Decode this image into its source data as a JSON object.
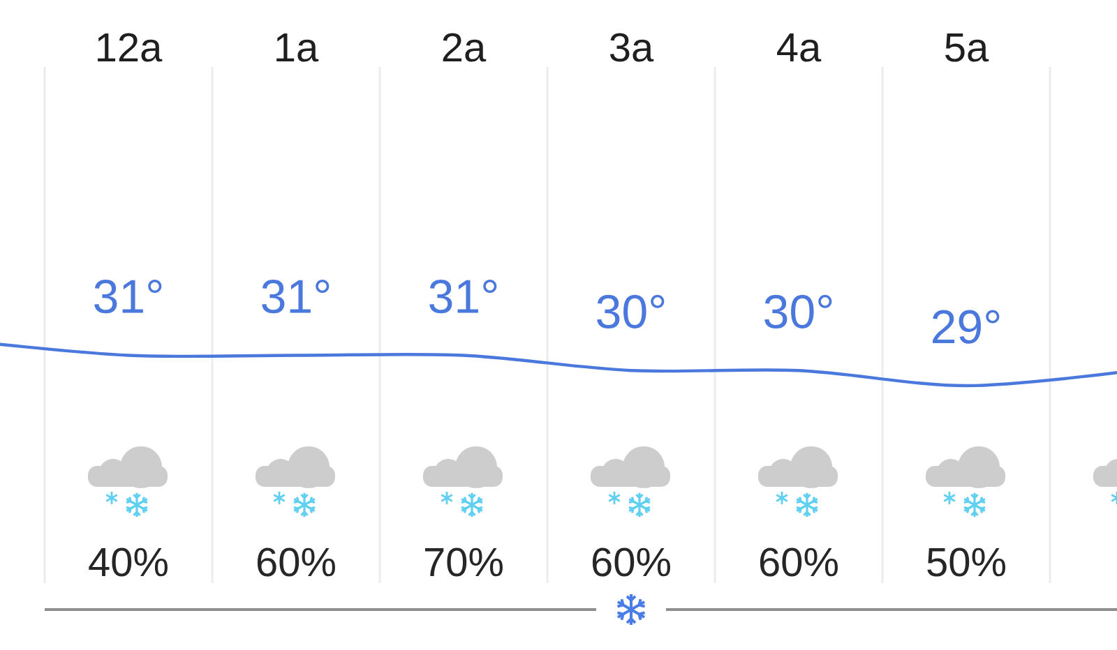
{
  "chart_data": {
    "type": "line",
    "categories": [
      null,
      "12a",
      "1a",
      "2a",
      "3a",
      "4a",
      "5a",
      null
    ],
    "values": [
      32,
      31,
      31,
      31,
      30,
      30,
      29,
      30
    ],
    "value_labels": [
      null,
      "31°",
      "31°",
      "31°",
      "30°",
      "30°",
      "29°",
      null
    ],
    "color": "#4a78dc",
    "ylim": [
      16,
      50
    ],
    "tick_labels": "x",
    "grid": "x",
    "annotations": [
      "40%",
      "60%",
      "70%",
      "60%",
      "60%",
      "50%"
    ]
  }
}
